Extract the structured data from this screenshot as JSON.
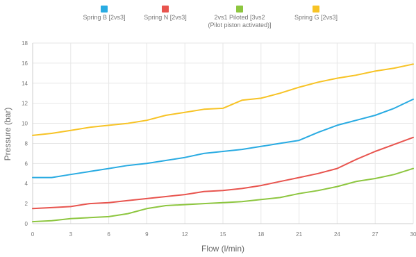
{
  "chart_data": {
    "type": "line",
    "title": "",
    "xlabel": "Flow (l/min)",
    "ylabel": "Pressure (bar)",
    "xlim": [
      0,
      30
    ],
    "ylim": [
      0,
      18
    ],
    "x_ticks": [
      "0",
      "3",
      "6",
      "9",
      "12",
      "15",
      "18",
      "21",
      "24",
      "27",
      "30"
    ],
    "y_ticks": [
      "0",
      "2",
      "4",
      "6",
      "8",
      "10",
      "12",
      "14",
      "16",
      "18"
    ],
    "grid": true,
    "legend_position": "top",
    "series": [
      {
        "name": "Spring B [2vs3]",
        "color": "#29abe2",
        "points": [
          [
            0,
            4.6
          ],
          [
            1.5,
            4.6
          ],
          [
            3,
            4.9
          ],
          [
            4.5,
            5.2
          ],
          [
            6,
            5.5
          ],
          [
            7.5,
            5.8
          ],
          [
            9,
            6.0
          ],
          [
            10.5,
            6.3
          ],
          [
            12,
            6.6
          ],
          [
            13.5,
            7.0
          ],
          [
            15,
            7.2
          ],
          [
            16.5,
            7.4
          ],
          [
            18,
            7.7
          ],
          [
            19.5,
            8.0
          ],
          [
            21,
            8.3
          ],
          [
            22.5,
            9.1
          ],
          [
            24,
            9.8
          ],
          [
            25.5,
            10.3
          ],
          [
            27,
            10.8
          ],
          [
            28.5,
            11.5
          ],
          [
            30,
            12.4
          ]
        ]
      },
      {
        "name": "Spring N [2vs3]",
        "color": "#e8544e",
        "points": [
          [
            0,
            1.5
          ],
          [
            1.5,
            1.6
          ],
          [
            3,
            1.7
          ],
          [
            4.5,
            2.0
          ],
          [
            6,
            2.1
          ],
          [
            7.5,
            2.3
          ],
          [
            9,
            2.5
          ],
          [
            10.5,
            2.7
          ],
          [
            12,
            2.9
          ],
          [
            13.5,
            3.2
          ],
          [
            15,
            3.3
          ],
          [
            16.5,
            3.5
          ],
          [
            18,
            3.8
          ],
          [
            19.5,
            4.2
          ],
          [
            21,
            4.6
          ],
          [
            22.5,
            5.0
          ],
          [
            24,
            5.5
          ],
          [
            25.5,
            6.4
          ],
          [
            27,
            7.2
          ],
          [
            28.5,
            7.9
          ],
          [
            30,
            8.6
          ]
        ]
      },
      {
        "name": "2vs1 Piloted [3vs2\n(Pilot piston activated)]",
        "color": "#8dc63f",
        "points": [
          [
            0,
            0.2
          ],
          [
            1.5,
            0.3
          ],
          [
            3,
            0.5
          ],
          [
            4.5,
            0.6
          ],
          [
            6,
            0.7
          ],
          [
            7.5,
            1.0
          ],
          [
            9,
            1.5
          ],
          [
            10.5,
            1.8
          ],
          [
            12,
            1.9
          ],
          [
            13.5,
            2.0
          ],
          [
            15,
            2.1
          ],
          [
            16.5,
            2.2
          ],
          [
            18,
            2.4
          ],
          [
            19.5,
            2.6
          ],
          [
            21,
            3.0
          ],
          [
            22.5,
            3.3
          ],
          [
            24,
            3.7
          ],
          [
            25.5,
            4.2
          ],
          [
            27,
            4.5
          ],
          [
            28.5,
            4.9
          ],
          [
            30,
            5.5
          ]
        ]
      },
      {
        "name": "Spring G [2vs3]",
        "color": "#f7c325",
        "points": [
          [
            0,
            8.8
          ],
          [
            1.5,
            9.0
          ],
          [
            3,
            9.3
          ],
          [
            4.5,
            9.6
          ],
          [
            6,
            9.8
          ],
          [
            7.5,
            10.0
          ],
          [
            9,
            10.3
          ],
          [
            10.5,
            10.8
          ],
          [
            12,
            11.1
          ],
          [
            13.5,
            11.4
          ],
          [
            15,
            11.5
          ],
          [
            16.5,
            12.3
          ],
          [
            18,
            12.5
          ],
          [
            19.5,
            13.0
          ],
          [
            21,
            13.6
          ],
          [
            22.5,
            14.1
          ],
          [
            24,
            14.5
          ],
          [
            25.5,
            14.8
          ],
          [
            27,
            15.2
          ],
          [
            28.5,
            15.5
          ],
          [
            30,
            15.9
          ]
        ]
      }
    ]
  }
}
